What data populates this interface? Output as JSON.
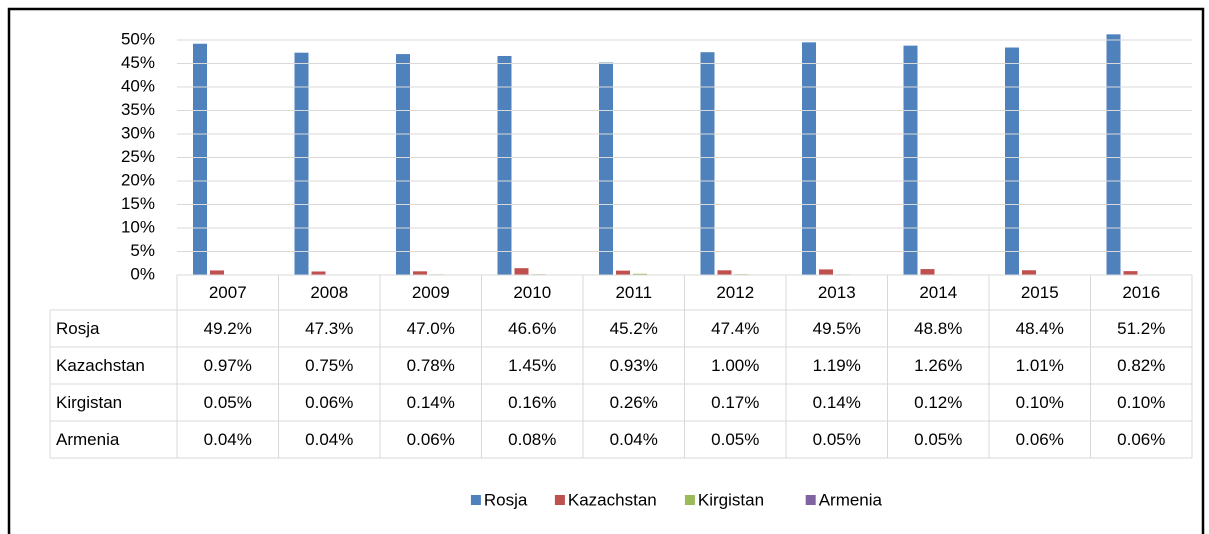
{
  "chart_data": {
    "type": "bar",
    "categories": [
      "2007",
      "2008",
      "2009",
      "2010",
      "2011",
      "2012",
      "2013",
      "2014",
      "2015",
      "2016"
    ],
    "series": [
      {
        "name": "Rosja",
        "color": "#4f81bd",
        "values": [
          49.2,
          47.3,
          47.0,
          46.6,
          45.2,
          47.4,
          49.5,
          48.8,
          48.4,
          51.2
        ],
        "value_labels": [
          "49.2%",
          "47.3%",
          "47.0%",
          "46.6%",
          "45.2%",
          "47.4%",
          "49.5%",
          "48.8%",
          "48.4%",
          "51.2%"
        ]
      },
      {
        "name": "Kazachstan",
        "color": "#c0504d",
        "values": [
          0.97,
          0.75,
          0.78,
          1.45,
          0.93,
          1.0,
          1.19,
          1.26,
          1.01,
          0.82
        ],
        "value_labels": [
          "0.97%",
          "0.75%",
          "0.78%",
          "1.45%",
          "0.93%",
          "1.00%",
          "1.19%",
          "1.26%",
          "1.01%",
          "0.82%"
        ]
      },
      {
        "name": "Kirgistan",
        "color": "#9bbb59",
        "values": [
          0.05,
          0.06,
          0.14,
          0.16,
          0.26,
          0.17,
          0.14,
          0.12,
          0.1,
          0.1
        ],
        "value_labels": [
          "0.05%",
          "0.06%",
          "0.14%",
          "0.16%",
          "0.26%",
          "0.17%",
          "0.14%",
          "0.12%",
          "0.10%",
          "0.10%"
        ]
      },
      {
        "name": "Armenia",
        "color": "#8064a2",
        "values": [
          0.04,
          0.04,
          0.06,
          0.08,
          0.04,
          0.05,
          0.05,
          0.05,
          0.06,
          0.06
        ],
        "value_labels": [
          "0.04%",
          "0.04%",
          "0.06%",
          "0.08%",
          "0.04%",
          "0.05%",
          "0.05%",
          "0.05%",
          "0.06%",
          "0.06%"
        ]
      }
    ],
    "ylim": [
      0,
      50
    ],
    "yticks": [
      {
        "value": 0,
        "label": "0%"
      },
      {
        "value": 5,
        "label": "5%"
      },
      {
        "value": 10,
        "label": "10%"
      },
      {
        "value": 15,
        "label": "15%"
      },
      {
        "value": 20,
        "label": "20%"
      },
      {
        "value": 25,
        "label": "25%"
      },
      {
        "value": 30,
        "label": "30%"
      },
      {
        "value": 35,
        "label": "35%"
      },
      {
        "value": 40,
        "label": "40%"
      },
      {
        "value": 45,
        "label": "45%"
      },
      {
        "value": 50,
        "label": "50%"
      }
    ],
    "grid": true,
    "legend": "bottom"
  }
}
